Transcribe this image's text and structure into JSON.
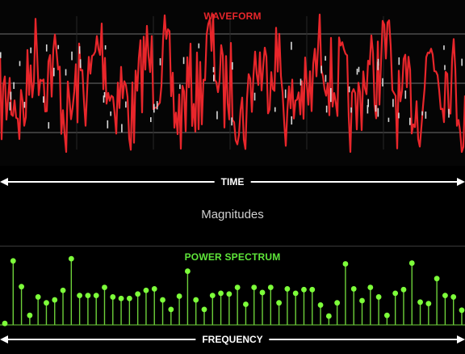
{
  "waveform": {
    "title": "WAVEFORM",
    "axis_label": "TIME",
    "colors": {
      "trace": "#e8262b",
      "highlight": "#d9d9d9",
      "grid": "#5a5a5a"
    }
  },
  "middle_label": "Magnitudes",
  "spectrum": {
    "title": "POWER SPECTRUM",
    "axis_label": "FREQUENCY",
    "colors": {
      "stem": "#6ed13a",
      "dot": "#7dff3a"
    }
  },
  "chart_data": {
    "type": "scatter",
    "title": "POWER SPECTRUM",
    "xlabel": "FREQUENCY",
    "ylabel": "",
    "ylim": [
      0,
      1
    ],
    "grid": false,
    "x": [
      1,
      2,
      3,
      4,
      5,
      6,
      7,
      8,
      9,
      10,
      11,
      12,
      13,
      14,
      15,
      16,
      17,
      18,
      19,
      20,
      21,
      22,
      23,
      24,
      25,
      26,
      27,
      28,
      29,
      30,
      31,
      32,
      33,
      34,
      35,
      36,
      37,
      38,
      39,
      40,
      41,
      42,
      43,
      44,
      45,
      46,
      47,
      48,
      49,
      50,
      51,
      52,
      53,
      54,
      55,
      56
    ],
    "y": [
      0.02,
      0.87,
      0.52,
      0.13,
      0.38,
      0.3,
      0.34,
      0.47,
      0.9,
      0.4,
      0.4,
      0.4,
      0.51,
      0.38,
      0.36,
      0.36,
      0.42,
      0.47,
      0.49,
      0.34,
      0.21,
      0.39,
      0.73,
      0.34,
      0.21,
      0.4,
      0.43,
      0.42,
      0.51,
      0.28,
      0.51,
      0.44,
      0.51,
      0.3,
      0.49,
      0.43,
      0.48,
      0.48,
      0.27,
      0.12,
      0.3,
      0.83,
      0.49,
      0.33,
      0.51,
      0.38,
      0.13,
      0.43,
      0.48,
      0.84,
      0.31,
      0.29,
      0.63,
      0.4,
      0.38,
      0.2
    ]
  }
}
